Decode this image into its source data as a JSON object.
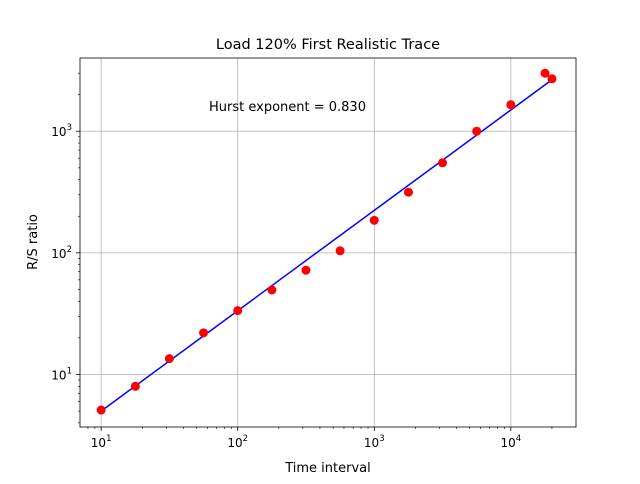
{
  "chart_data": {
    "type": "scatter",
    "title": "Load 120% First Realistic Trace",
    "xlabel": "Time interval",
    "ylabel": "R/S ratio",
    "xscale": "log",
    "yscale": "log",
    "xlim": [
      7.0,
      30000
    ],
    "ylim": [
      3.7,
      4000
    ],
    "grid": true,
    "annotation": "Hurst exponent = 0.830",
    "x_ticks": [
      {
        "value": 10,
        "base": "10",
        "exp": "1"
      },
      {
        "value": 100,
        "base": "10",
        "exp": "2"
      },
      {
        "value": 1000,
        "base": "10",
        "exp": "3"
      },
      {
        "value": 10000,
        "base": "10",
        "exp": "4"
      }
    ],
    "y_ticks": [
      {
        "value": 10,
        "base": "10",
        "exp": "1"
      },
      {
        "value": 100,
        "base": "10",
        "exp": "2"
      },
      {
        "value": 1000,
        "base": "10",
        "exp": "3"
      }
    ],
    "points": {
      "color": "#ff0000",
      "x": [
        10,
        17.8,
        31.6,
        56.2,
        100,
        178,
        316,
        562,
        1000,
        1780,
        3160,
        5620,
        10000,
        17800,
        20000
      ],
      "y": [
        5.1,
        8.0,
        13.5,
        22.0,
        33.5,
        49.5,
        72.0,
        104,
        185,
        315,
        550,
        1000,
        1650,
        3000,
        2700
      ]
    },
    "fit_line": {
      "color": "#0000ff",
      "x": [
        10,
        20000
      ],
      "y": [
        5.0,
        2650
      ]
    }
  }
}
